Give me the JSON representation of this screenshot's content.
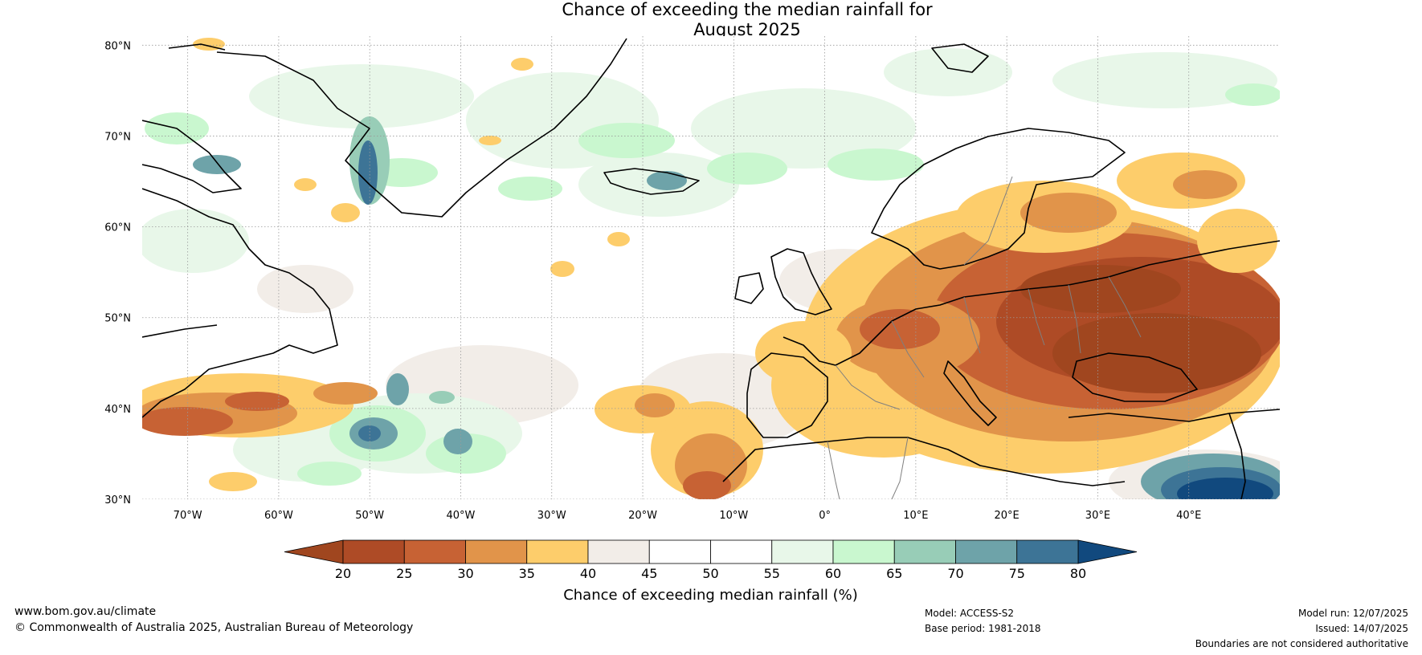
{
  "map": {
    "title_line1": "Chance of exceeding the median rainfall for",
    "title_line2": "August 2025",
    "lat_labels": [
      "30°N",
      "40°N",
      "50°N",
      "60°N",
      "70°N",
      "80°N"
    ],
    "lon_labels": [
      "70°W",
      "60°W",
      "50°W",
      "40°W",
      "30°W",
      "20°W",
      "10°W",
      "0°",
      "10°E",
      "20°E",
      "30°E",
      "40°E"
    ],
    "colors": {
      "ocean_neutral": "#ffffff",
      "land_outline": "#000000",
      "border": "#7f7f7f",
      "grid": "#9a9a9a"
    }
  },
  "colorbar": {
    "ticks": [
      "20",
      "25",
      "30",
      "35",
      "40",
      "45",
      "50",
      "55",
      "60",
      "65",
      "70",
      "75",
      "80"
    ],
    "label": "Chance of exceeding median rainfall (%)",
    "below_color": "#a0461f",
    "above_color": "#11497e",
    "colors": [
      "#ae4b26",
      "#c76234",
      "#e1944a",
      "#fdcd6b",
      "#f2ede8",
      "#ffffff",
      "#ffffff",
      "#e8f7e9",
      "#c9f7cf",
      "#98cdb7",
      "#6ea3a9",
      "#3d7496"
    ]
  },
  "footer": {
    "website": "www.bom.gov.au/climate",
    "copyright": "© Commonwealth of Australia 2025, Australian Bureau of Meteorology",
    "model": "Model: ACCESS-S2",
    "base_period": "Base period: 1981-2018",
    "model_run": "Model run: 12/07/2025",
    "issued": "Issued: 14/07/2025",
    "boundaries_note": "Boundaries are not considered authoritative"
  }
}
